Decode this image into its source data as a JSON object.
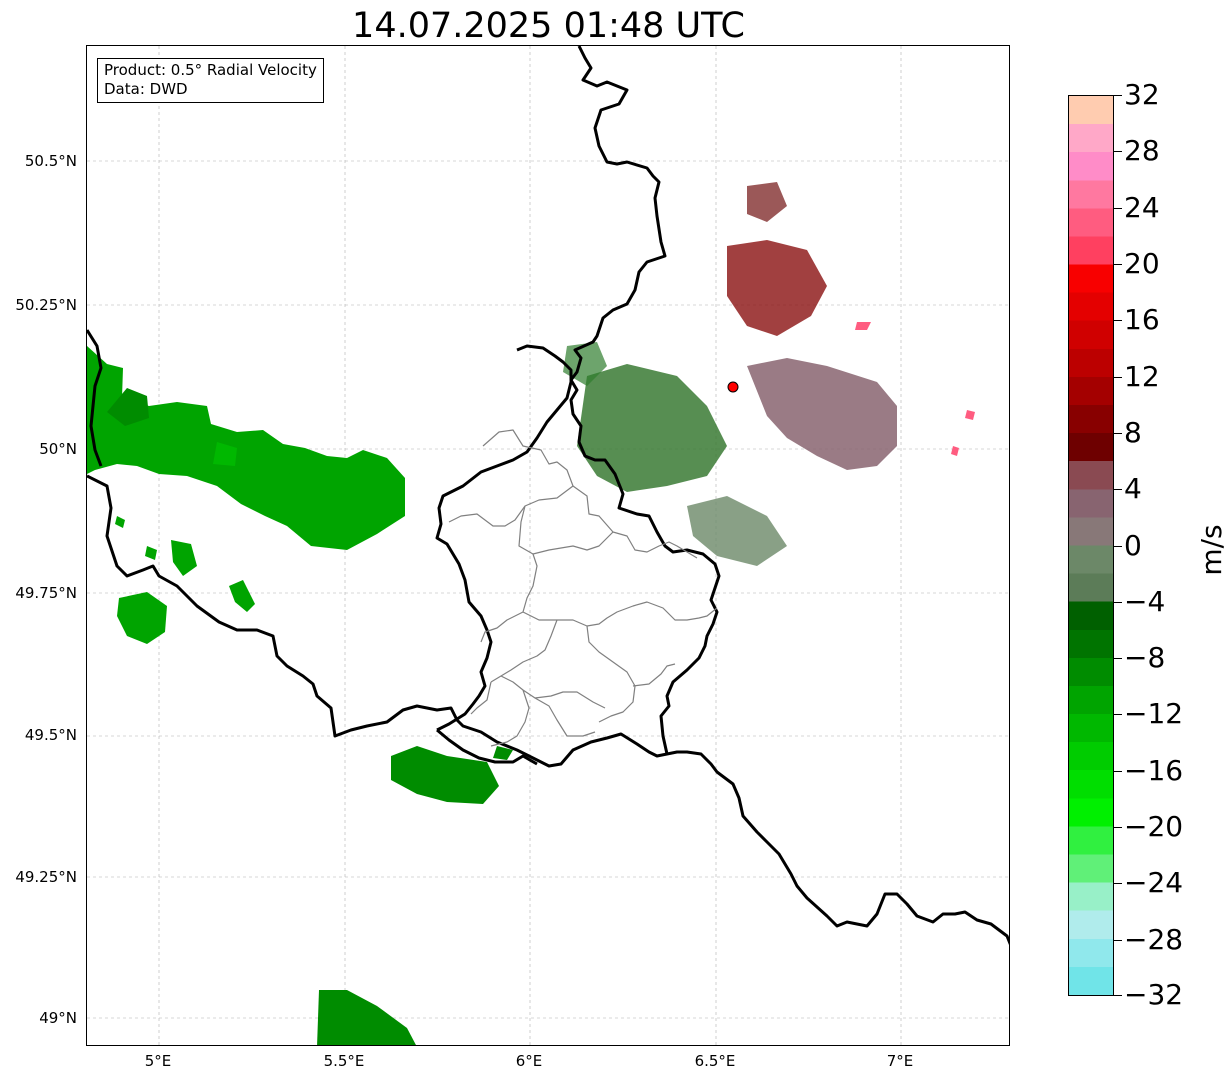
{
  "title": "14.07.2025 01:48 UTC",
  "info": {
    "product": "Product: 0.5° Radial Velocity",
    "source": "Data: DWD"
  },
  "axes": {
    "lat_labels": [
      "50.5°N",
      "50.25°N",
      "50°N",
      "49.75°N",
      "49.5°N",
      "49.25°N",
      "49°N"
    ],
    "lon_labels": [
      "5°E",
      "5.5°E",
      "6°E",
      "6.5°E",
      "7°E"
    ],
    "lon_range": [
      4.8,
      7.3
    ],
    "lat_range": [
      48.95,
      50.7
    ]
  },
  "colorbar": {
    "label": "m/s",
    "min": -32,
    "max": 32,
    "tick_labels": [
      "32",
      "28",
      "24",
      "20",
      "16",
      "12",
      "8",
      "4",
      "0",
      "−4",
      "−8",
      "−12",
      "−16",
      "−20",
      "−24",
      "−28",
      "−32"
    ],
    "colors": [
      "#70e4e8",
      "#90e8ec",
      "#b0ecec",
      "#98f0c8",
      "#60f078",
      "#30f040",
      "#00f000",
      "#00de00",
      "#00cc00",
      "#00b800",
      "#00a400",
      "#008c00",
      "#007400",
      "#006000",
      "#5c7c58",
      "#6c8868",
      "#887878",
      "#886470",
      "#8a4a52",
      "#6e0000",
      "#880000",
      "#a40000",
      "#bc0000",
      "#d00000",
      "#e40000",
      "#f80000",
      "#ff4060",
      "#ff5c80",
      "#ff78a0",
      "#ff8cc8",
      "#ffa8c8",
      "#ffccb0"
    ]
  },
  "radar_site": {
    "lon": 6.548,
    "lat": 50.11,
    "color": "#ff0000"
  },
  "colors": {
    "border": "#000000",
    "region_border": "#808080",
    "grid": "#b0b0b0"
  }
}
